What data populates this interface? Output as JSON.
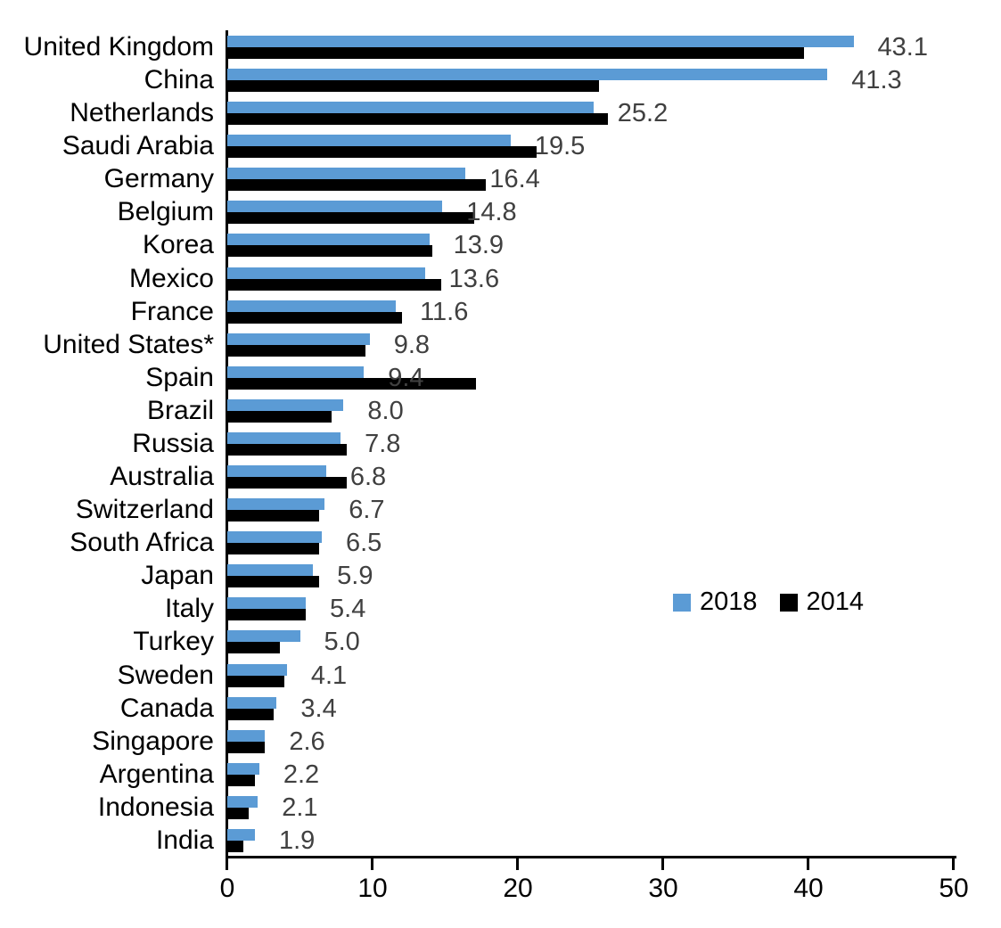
{
  "chart_data": {
    "type": "bar",
    "orientation": "horizontal",
    "title": "",
    "xlabel": "",
    "ylabel": "",
    "categories": [
      "United Kingdom",
      "China",
      "Netherlands",
      "Saudi Arabia",
      "Germany",
      "Belgium",
      "Korea",
      "Mexico",
      "France",
      "United States*",
      "Spain",
      "Brazil",
      "Russia",
      "Australia",
      "Switzerland",
      "South Africa",
      "Japan",
      "Italy",
      "Turkey",
      "Sweden",
      "Canada",
      "Singapore",
      "Argentina",
      "Indonesia",
      "India"
    ],
    "series": [
      {
        "name": "2018",
        "color": "#5B9BD5",
        "values": [
          43.1,
          41.3,
          25.2,
          19.5,
          16.4,
          14.8,
          13.9,
          13.6,
          11.6,
          9.8,
          9.4,
          8.0,
          7.8,
          6.8,
          6.7,
          6.5,
          5.9,
          5.4,
          5.0,
          4.1,
          3.4,
          2.6,
          2.2,
          2.1,
          1.9
        ]
      },
      {
        "name": "2014",
        "color": "#000000",
        "values": [
          39.7,
          25.6,
          26.2,
          21.3,
          17.8,
          17.0,
          14.1,
          14.7,
          12.0,
          9.5,
          17.1,
          7.2,
          8.2,
          8.2,
          6.3,
          6.3,
          6.3,
          5.4,
          3.6,
          3.9,
          3.2,
          2.6,
          1.9,
          1.5,
          1.1
        ]
      }
    ],
    "data_labels": [
      "43.1",
      "41.3",
      "25.2",
      "19.5",
      "16.4",
      "14.8",
      "13.9",
      "13.6",
      "11.6",
      "9.8",
      "9.4",
      "8.0",
      "7.8",
      "6.8",
      "6.7",
      "6.5",
      "5.9",
      "5.4",
      "5.0",
      "4.1",
      "3.4",
      "2.6",
      "2.2",
      "2.1",
      "1.9"
    ],
    "data_labels_series": "2018",
    "data_label_color": "#404040",
    "xlim": [
      0,
      50
    ],
    "x_ticks": [
      "0",
      "10",
      "20",
      "30",
      "40",
      "50"
    ],
    "grid": false,
    "legend_position": "middle-right",
    "legend": [
      "2018",
      "2014"
    ]
  }
}
